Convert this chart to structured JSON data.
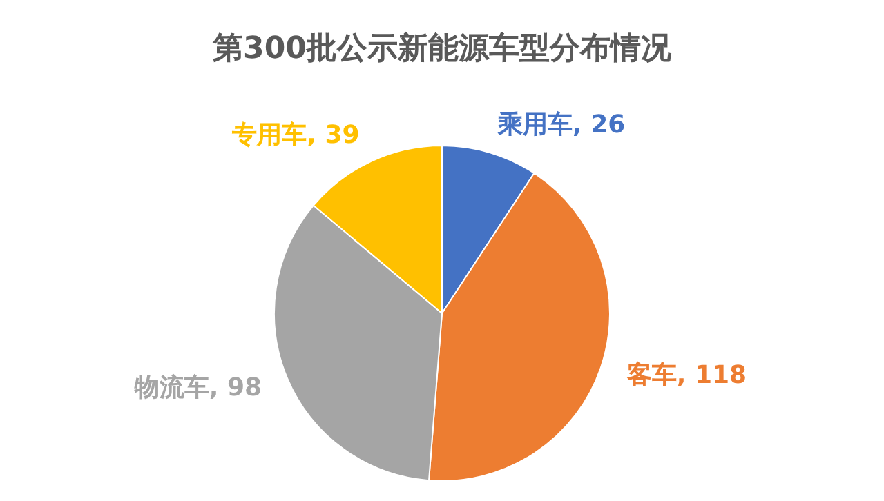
{
  "chart_data": {
    "type": "pie",
    "title": "第300批公示新能源车型分布情况",
    "categories": [
      "乘用车",
      "客车",
      "物流车",
      "专用车"
    ],
    "values": [
      26,
      118,
      98,
      39
    ],
    "colors": [
      "#4472c4",
      "#ed7d31",
      "#a5a5a5",
      "#ffc000"
    ],
    "value_labels": [
      ", 26",
      ", 118",
      ", 98",
      ", 39"
    ],
    "legend": false
  }
}
